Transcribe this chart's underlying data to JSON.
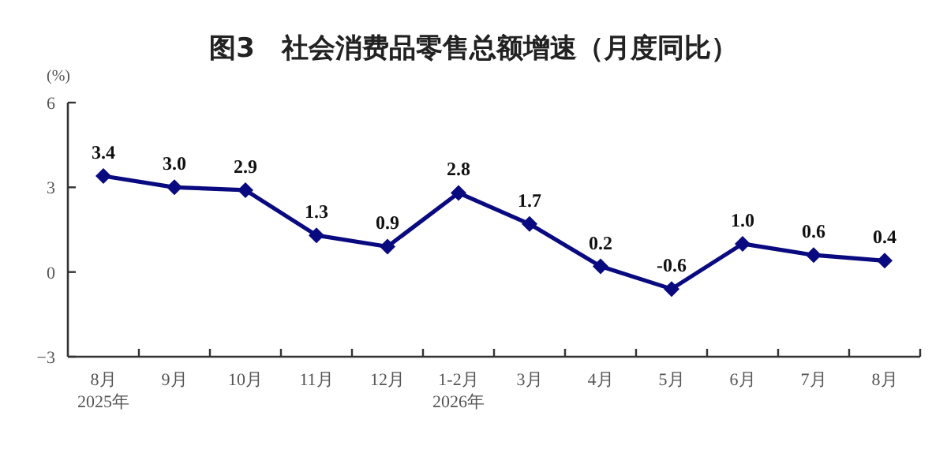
{
  "chart_data": {
    "type": "line",
    "title": "图3　社会消费品零售总额增速（月度同比）",
    "ylabel": "(%)",
    "categories": [
      "8月\n2025年",
      "9月",
      "10月",
      "11月",
      "12月",
      "1-2月\n2026年",
      "3月",
      "4月",
      "5月",
      "6月",
      "7月",
      "8月"
    ],
    "series": [
      {
        "color": "#0a0a80",
        "values": [
          3.4,
          3.0,
          2.9,
          1.3,
          0.9,
          2.8,
          1.7,
          0.2,
          -0.6,
          1.0,
          0.6,
          0.4
        ],
        "value_labels": [
          "3.4",
          "3.0",
          "2.9",
          "1.3",
          "0.9",
          "2.8",
          "1.7",
          "0.2",
          "-0.6",
          "1.0",
          "0.6",
          "0.4"
        ]
      }
    ],
    "ylim": [
      -3,
      6
    ],
    "yticks": [
      -3,
      0,
      3,
      6
    ],
    "marker": "diamond",
    "line_style": "solid",
    "grid": false
  }
}
